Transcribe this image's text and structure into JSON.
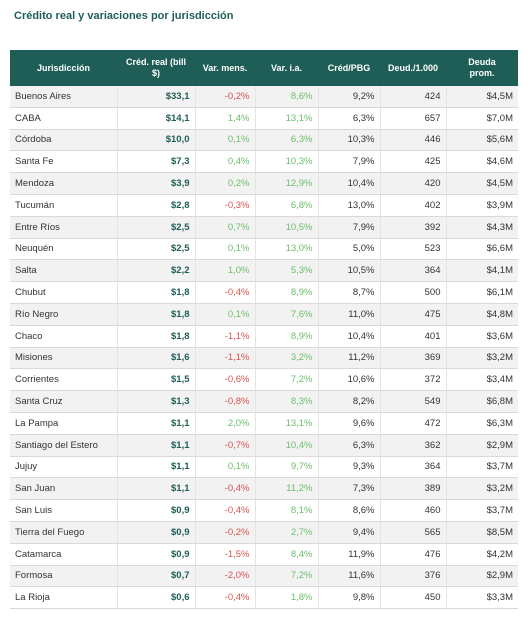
{
  "title": "Crédito real y variaciones por jurisdicción",
  "table": {
    "header": [
      "Jurisdicción",
      "Créd. real (bill $)",
      "Var. mens.",
      "Var. i.a.",
      "Créd/PBG",
      "Deud./1.000",
      "Deuda prom."
    ],
    "rows": [
      [
        "Buenos Aires",
        "$33,1",
        "-0,2%",
        "8,6%",
        "9,2%",
        "424",
        "$4,5M"
      ],
      [
        "CABA",
        "$14,1",
        "1,4%",
        "13,1%",
        "6,3%",
        "657",
        "$7,0M"
      ],
      [
        "Córdoba",
        "$10,0",
        "0,1%",
        "6,3%",
        "10,3%",
        "446",
        "$5,6M"
      ],
      [
        "Santa Fe",
        "$7,3",
        "0,4%",
        "10,3%",
        "7,9%",
        "425",
        "$4,6M"
      ],
      [
        "Mendoza",
        "$3,9",
        "0,2%",
        "12,9%",
        "10,4%",
        "420",
        "$4,5M"
      ],
      [
        "Tucumán",
        "$2,8",
        "-0,3%",
        "6,8%",
        "13,0%",
        "402",
        "$3,9M"
      ],
      [
        "Entre Ríos",
        "$2,5",
        "0,7%",
        "10,5%",
        "7,9%",
        "392",
        "$4,3M"
      ],
      [
        "Neuquén",
        "$2,5",
        "0,1%",
        "13,0%",
        "5,0%",
        "523",
        "$6,6M"
      ],
      [
        "Salta",
        "$2,2",
        "1,0%",
        "5,3%",
        "10,5%",
        "364",
        "$4,1M"
      ],
      [
        "Chubut",
        "$1,8",
        "-0,4%",
        "8,9%",
        "8,7%",
        "500",
        "$6,1M"
      ],
      [
        "Río Negro",
        "$1,8",
        "0,1%",
        "7,6%",
        "11,0%",
        "475",
        "$4,8M"
      ],
      [
        "Chaco",
        "$1,8",
        "-1,1%",
        "8,9%",
        "10,4%",
        "401",
        "$3,6M"
      ],
      [
        "Misiones",
        "$1,6",
        "-1,1%",
        "3,2%",
        "11,2%",
        "369",
        "$3,2M"
      ],
      [
        "Corrientes",
        "$1,5",
        "-0,6%",
        "7,2%",
        "10,6%",
        "372",
        "$3,4M"
      ],
      [
        "Santa Cruz",
        "$1,3",
        "-0,8%",
        "8,3%",
        "8,2%",
        "549",
        "$6,8M"
      ],
      [
        "La Pampa",
        "$1,1",
        "2,0%",
        "13,1%",
        "9,6%",
        "472",
        "$6,3M"
      ],
      [
        "Santiago del Estero",
        "$1,1",
        "-0,7%",
        "10,4%",
        "6,3%",
        "362",
        "$2,9M"
      ],
      [
        "Jujuy",
        "$1,1",
        "0,1%",
        "9,7%",
        "9,3%",
        "364",
        "$3,7M"
      ],
      [
        "San Juan",
        "$1,1",
        "-0,4%",
        "11,2%",
        "7,3%",
        "389",
        "$3,2M"
      ],
      [
        "San Luis",
        "$0,9",
        "-0,4%",
        "8,1%",
        "8,6%",
        "460",
        "$3,7M"
      ],
      [
        "Tierra del Fuego",
        "$0,9",
        "-0,2%",
        "2,7%",
        "9,4%",
        "565",
        "$8,5M"
      ],
      [
        "Catamarca",
        "$0,9",
        "-1,5%",
        "8,4%",
        "11,9%",
        "476",
        "$4,2M"
      ],
      [
        "Formosa",
        "$0,7",
        "-2,0%",
        "7,2%",
        "11,6%",
        "376",
        "$2,9M"
      ],
      [
        "La Rioja",
        "$0,6",
        "-0,4%",
        "1,8%",
        "9,8%",
        "450",
        "$3,3M"
      ]
    ]
  }
}
